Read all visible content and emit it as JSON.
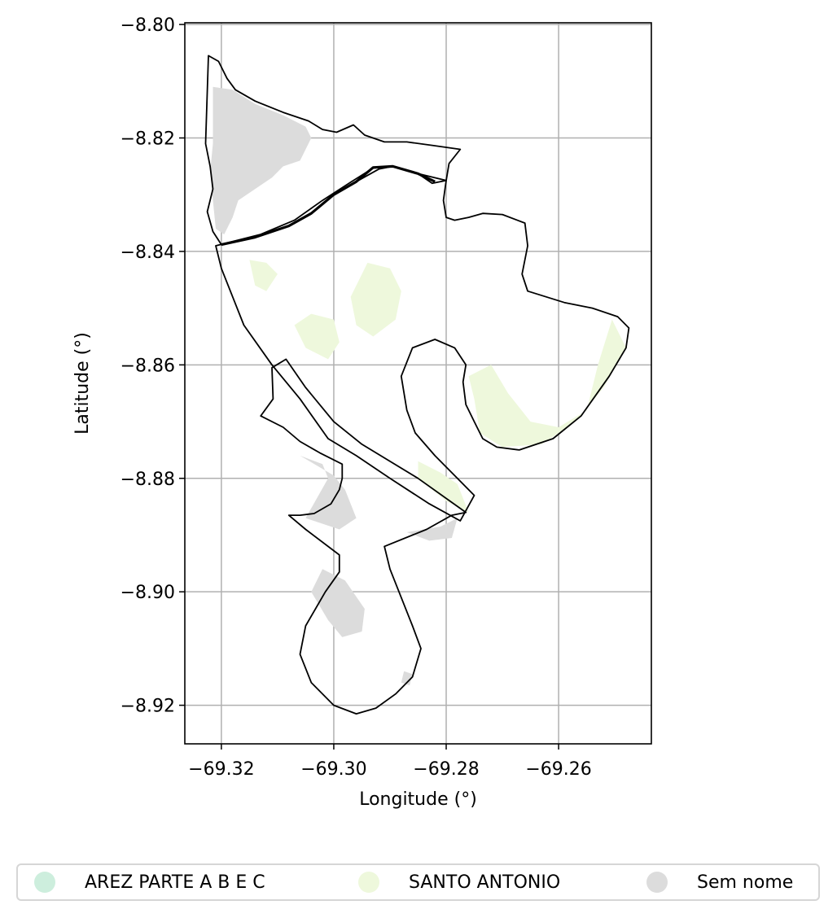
{
  "chart_data": {
    "type": "map",
    "xlabel": "Longitude (°)",
    "ylabel": "Latitude (°)",
    "xlim": [
      -69.3265,
      -69.2435
    ],
    "ylim": [
      -8.9268,
      -8.7997
    ],
    "x_ticks": [
      -69.32,
      -69.3,
      -69.28,
      -69.26
    ],
    "x_tick_labels": [
      "−69.32",
      "−69.30",
      "−69.28",
      "−69.26"
    ],
    "y_ticks": [
      -8.8,
      -8.82,
      -8.84,
      -8.86,
      -8.88,
      -8.9,
      -8.92
    ],
    "y_tick_labels": [
      "−8.80",
      "−8.82",
      "−8.84",
      "−8.86",
      "−8.88",
      "−8.90",
      "−8.92"
    ],
    "grid": true,
    "legend_position": "bottom-center",
    "legend": [
      {
        "label": "AREZ PARTE A B E C",
        "color": "#cdeedd"
      },
      {
        "label": "SANTO ANTONIO",
        "color": "#eef8dc"
      },
      {
        "label": "Sem nome",
        "color": "#dcdcdc"
      }
    ],
    "boundaries": [
      {
        "name": "north-polygon",
        "coords": [
          [
            -69.3223,
            -8.8055
          ],
          [
            -69.3205,
            -8.8065
          ],
          [
            -69.319,
            -8.8095
          ],
          [
            -69.3175,
            -8.8115
          ],
          [
            -69.314,
            -8.8135
          ],
          [
            -69.309,
            -8.8155
          ],
          [
            -69.3045,
            -8.817
          ],
          [
            -69.302,
            -8.8185
          ],
          [
            -69.2995,
            -8.819
          ],
          [
            -69.2965,
            -8.8177
          ],
          [
            -69.2945,
            -8.8195
          ],
          [
            -69.291,
            -8.8207
          ],
          [
            -69.287,
            -8.8207
          ],
          [
            -69.2825,
            -8.8213
          ],
          [
            -69.2775,
            -8.822
          ],
          [
            -69.2795,
            -8.8245
          ],
          [
            -69.28,
            -8.8275
          ],
          [
            -69.2825,
            -8.828
          ],
          [
            -69.285,
            -8.8263
          ],
          [
            -69.2895,
            -8.825
          ],
          [
            -69.292,
            -8.8255
          ],
          [
            -69.296,
            -8.8277
          ],
          [
            -69.3,
            -8.83
          ],
          [
            -69.304,
            -8.8333
          ],
          [
            -69.308,
            -8.8355
          ],
          [
            -69.314,
            -8.8375
          ],
          [
            -69.32,
            -8.8388
          ],
          [
            -69.3215,
            -8.8365
          ],
          [
            -69.3225,
            -8.833
          ],
          [
            -69.3215,
            -8.829
          ],
          [
            -69.322,
            -8.825
          ],
          [
            -69.3228,
            -8.821
          ],
          [
            -69.3223,
            -8.8055
          ]
        ]
      },
      {
        "name": "east-polygon",
        "coords": [
          [
            -69.28,
            -8.8275
          ],
          [
            -69.2805,
            -8.831
          ],
          [
            -69.28,
            -8.834
          ],
          [
            -69.2785,
            -8.8345
          ],
          [
            -69.276,
            -8.834
          ],
          [
            -69.2735,
            -8.8333
          ],
          [
            -69.27,
            -8.8335
          ],
          [
            -69.266,
            -8.835
          ],
          [
            -69.2655,
            -8.839
          ],
          [
            -69.2665,
            -8.844
          ],
          [
            -69.2655,
            -8.847
          ],
          [
            -69.259,
            -8.849
          ],
          [
            -69.254,
            -8.85
          ],
          [
            -69.2495,
            -8.8515
          ],
          [
            -69.2475,
            -8.8535
          ],
          [
            -69.248,
            -8.857
          ],
          [
            -69.251,
            -8.862
          ],
          [
            -69.256,
            -8.869
          ],
          [
            -69.261,
            -8.873
          ],
          [
            -69.267,
            -8.875
          ],
          [
            -69.271,
            -8.8745
          ],
          [
            -69.2735,
            -8.873
          ],
          [
            -69.275,
            -8.87
          ],
          [
            -69.2765,
            -8.867
          ],
          [
            -69.277,
            -8.863
          ],
          [
            -69.2765,
            -8.86
          ],
          [
            -69.2785,
            -8.857
          ],
          [
            -69.282,
            -8.8555
          ],
          [
            -69.286,
            -8.857
          ],
          [
            -69.288,
            -8.862
          ],
          [
            -69.287,
            -8.868
          ],
          [
            -69.2855,
            -8.872
          ],
          [
            -69.282,
            -8.876
          ],
          [
            -69.278,
            -8.88
          ],
          [
            -69.275,
            -8.883
          ],
          [
            -69.2775,
            -8.8875
          ],
          [
            -69.283,
            -8.8845
          ],
          [
            -69.29,
            -8.88
          ],
          [
            -69.296,
            -8.876
          ],
          [
            -69.301,
            -8.873
          ],
          [
            -69.306,
            -8.866
          ],
          [
            -69.311,
            -8.86
          ],
          [
            -69.316,
            -8.853
          ],
          [
            -69.32,
            -8.843
          ],
          [
            -69.321,
            -8.839
          ],
          [
            -69.313,
            -8.837
          ],
          [
            -69.307,
            -8.8345
          ],
          [
            -69.302,
            -8.831
          ],
          [
            -69.297,
            -8.8278
          ],
          [
            -69.293,
            -8.8253
          ],
          [
            -69.2895,
            -8.825
          ],
          [
            -69.285,
            -8.8263
          ],
          [
            -69.28,
            -8.8275
          ]
        ]
      },
      {
        "name": "south-polygon",
        "coords": [
          [
            -69.3085,
            -8.859
          ],
          [
            -69.311,
            -8.8605
          ],
          [
            -69.3108,
            -8.866
          ],
          [
            -69.313,
            -8.869
          ],
          [
            -69.309,
            -8.871
          ],
          [
            -69.306,
            -8.8735
          ],
          [
            -69.3025,
            -8.8755
          ],
          [
            -69.2985,
            -8.8775
          ],
          [
            -69.2985,
            -8.88
          ],
          [
            -69.299,
            -8.882
          ],
          [
            -69.3005,
            -8.8845
          ],
          [
            -69.3035,
            -8.8862
          ],
          [
            -69.306,
            -8.8865
          ],
          [
            -69.308,
            -8.8865
          ],
          [
            -69.305,
            -8.889
          ],
          [
            -69.299,
            -8.8935
          ],
          [
            -69.299,
            -8.8965
          ],
          [
            -69.3015,
            -8.9
          ],
          [
            -69.305,
            -8.906
          ],
          [
            -69.306,
            -8.911
          ],
          [
            -69.304,
            -8.916
          ],
          [
            -69.3,
            -8.92
          ],
          [
            -69.296,
            -8.9215
          ],
          [
            -69.2925,
            -8.9205
          ],
          [
            -69.289,
            -8.918
          ],
          [
            -69.286,
            -8.915
          ],
          [
            -69.2845,
            -8.91
          ],
          [
            -69.286,
            -8.906
          ],
          [
            -69.288,
            -8.901
          ],
          [
            -69.29,
            -8.896
          ],
          [
            -69.291,
            -8.892
          ],
          [
            -69.2835,
            -8.889
          ],
          [
            -69.279,
            -8.8865
          ],
          [
            -69.2765,
            -8.886
          ],
          [
            -69.285,
            -8.88
          ],
          [
            -69.295,
            -8.874
          ],
          [
            -69.3,
            -8.87
          ],
          [
            -69.305,
            -8.864
          ],
          [
            -69.3085,
            -8.859
          ]
        ]
      }
    ],
    "regions": [
      {
        "name": "sem-nome-north",
        "category": "Sem nome",
        "coords": [
          [
            -69.3215,
            -8.811
          ],
          [
            -69.318,
            -8.8115
          ],
          [
            -69.314,
            -8.814
          ],
          [
            -69.309,
            -8.816
          ],
          [
            -69.305,
            -8.818
          ],
          [
            -69.304,
            -8.82
          ],
          [
            -69.306,
            -8.824
          ],
          [
            -69.309,
            -8.825
          ],
          [
            -69.311,
            -8.827
          ],
          [
            -69.314,
            -8.829
          ],
          [
            -69.317,
            -8.831
          ],
          [
            -69.318,
            -8.834
          ],
          [
            -69.3195,
            -8.837
          ],
          [
            -69.321,
            -8.836
          ],
          [
            -69.3215,
            -8.831
          ],
          [
            -69.322,
            -8.826
          ],
          [
            -69.3215,
            -8.821
          ],
          [
            -69.3215,
            -8.811
          ]
        ]
      },
      {
        "name": "sem-nome-south-mid",
        "category": "Sem nome",
        "coords": [
          [
            -69.306,
            -8.876
          ],
          [
            -69.302,
            -8.8775
          ],
          [
            -69.301,
            -8.88
          ],
          [
            -69.305,
            -8.887
          ],
          [
            -69.299,
            -8.889
          ],
          [
            -69.296,
            -8.887
          ],
          [
            -69.298,
            -8.882
          ],
          [
            -69.3,
            -8.8795
          ],
          [
            -69.306,
            -8.876
          ]
        ]
      },
      {
        "name": "sem-nome-south-low",
        "category": "Sem nome",
        "coords": [
          [
            -69.304,
            -8.9
          ],
          [
            -69.301,
            -8.905
          ],
          [
            -69.2985,
            -8.908
          ],
          [
            -69.295,
            -8.907
          ],
          [
            -69.2945,
            -8.903
          ],
          [
            -69.298,
            -8.898
          ],
          [
            -69.302,
            -8.896
          ],
          [
            -69.304,
            -8.9
          ]
        ]
      },
      {
        "name": "sem-nome-south-east",
        "category": "Sem nome",
        "coords": [
          [
            -69.287,
            -8.8895
          ],
          [
            -69.281,
            -8.8885
          ],
          [
            -69.278,
            -8.887
          ],
          [
            -69.279,
            -8.8905
          ],
          [
            -69.283,
            -8.891
          ],
          [
            -69.287,
            -8.8895
          ]
        ]
      },
      {
        "name": "sem-nome-south-tip",
        "category": "Sem nome",
        "coords": [
          [
            -69.2875,
            -8.914
          ],
          [
            -69.286,
            -8.9145
          ],
          [
            -69.2865,
            -8.9165
          ],
          [
            -69.288,
            -8.916
          ],
          [
            -69.2875,
            -8.914
          ]
        ]
      },
      {
        "name": "santo-antonio-west",
        "category": "SANTO ANTONIO",
        "coords": [
          [
            -69.315,
            -8.8415
          ],
          [
            -69.312,
            -8.842
          ],
          [
            -69.31,
            -8.844
          ],
          [
            -69.312,
            -8.847
          ],
          [
            -69.314,
            -8.846
          ],
          [
            -69.315,
            -8.8415
          ]
        ]
      },
      {
        "name": "santo-antonio-mid-west",
        "category": "SANTO ANTONIO",
        "coords": [
          [
            -69.307,
            -8.853
          ],
          [
            -69.304,
            -8.851
          ],
          [
            -69.3,
            -8.852
          ],
          [
            -69.299,
            -8.856
          ],
          [
            -69.301,
            -8.859
          ],
          [
            -69.305,
            -8.857
          ],
          [
            -69.307,
            -8.853
          ]
        ]
      },
      {
        "name": "santo-antonio-center",
        "category": "SANTO ANTONIO",
        "coords": [
          [
            -69.294,
            -8.842
          ],
          [
            -69.29,
            -8.843
          ],
          [
            -69.288,
            -8.847
          ],
          [
            -69.289,
            -8.852
          ],
          [
            -69.293,
            -8.855
          ],
          [
            -69.296,
            -8.853
          ],
          [
            -69.297,
            -8.848
          ],
          [
            -69.294,
            -8.842
          ]
        ]
      },
      {
        "name": "santo-antonio-east",
        "category": "SANTO ANTONIO",
        "coords": [
          [
            -69.2505,
            -8.852
          ],
          [
            -69.248,
            -8.857
          ],
          [
            -69.252,
            -8.864
          ],
          [
            -69.257,
            -8.87
          ],
          [
            -69.263,
            -8.874
          ],
          [
            -69.27,
            -8.8745
          ],
          [
            -69.274,
            -8.872
          ],
          [
            -69.275,
            -8.866
          ],
          [
            -69.276,
            -8.862
          ],
          [
            -69.272,
            -8.86
          ],
          [
            -69.269,
            -8.865
          ],
          [
            -69.265,
            -8.87
          ],
          [
            -69.26,
            -8.871
          ],
          [
            -69.255,
            -8.868
          ],
          [
            -69.253,
            -8.86
          ],
          [
            -69.2505,
            -8.852
          ]
        ]
      },
      {
        "name": "santo-antonio-south",
        "category": "SANTO ANTONIO",
        "coords": [
          [
            -69.285,
            -8.877
          ],
          [
            -69.281,
            -8.879
          ],
          [
            -69.278,
            -8.881
          ],
          [
            -69.276,
            -8.886
          ],
          [
            -69.28,
            -8.884
          ],
          [
            -69.285,
            -8.88
          ],
          [
            -69.285,
            -8.877
          ]
        ]
      }
    ],
    "thick_border": [
      [
        -69.32,
        -8.8388
      ],
      [
        -69.314,
        -8.8375
      ],
      [
        -69.308,
        -8.8355
      ],
      [
        -69.304,
        -8.8333
      ],
      [
        -69.3,
        -8.83
      ],
      [
        -69.296,
        -8.8277
      ],
      [
        -69.293,
        -8.8252
      ],
      [
        -69.2895,
        -8.825
      ],
      [
        -69.285,
        -8.8263
      ],
      [
        -69.282,
        -8.8277
      ]
    ]
  }
}
